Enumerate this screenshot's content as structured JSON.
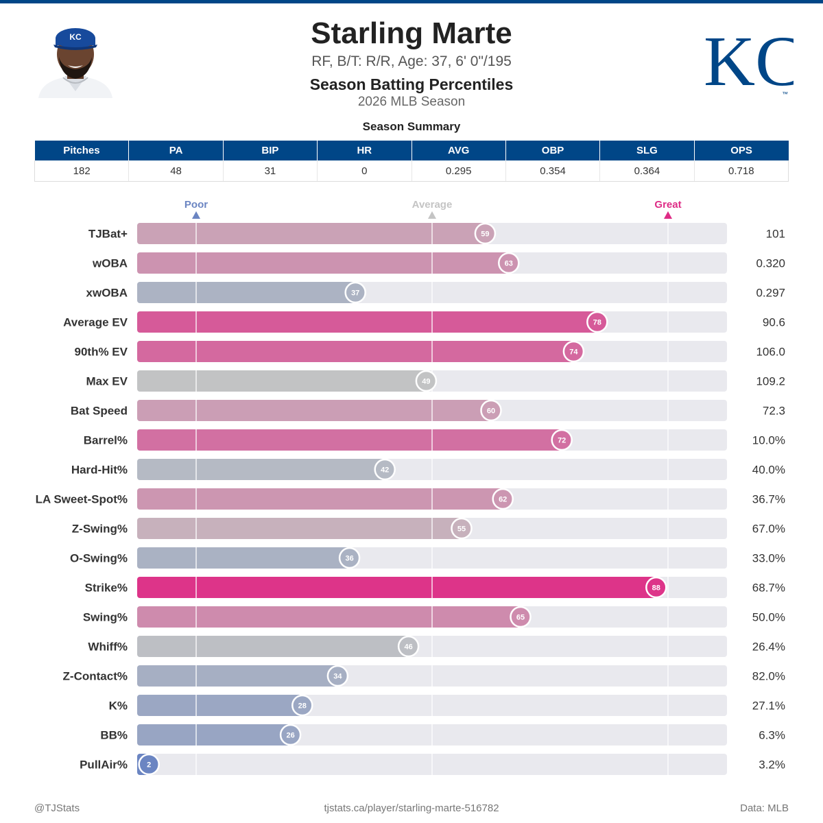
{
  "header": {
    "player_name": "Starling Marte",
    "bio": "RF, B/T: R/R, Age: 37, 6' 0\"/195",
    "title": "Season Batting Percentiles",
    "season": "2026 MLB Season",
    "logo_text": "KC",
    "logo_mark": "™"
  },
  "colors": {
    "brand": "#004687",
    "great": "#de2c86",
    "average": "#c4c4c4",
    "poor": "#6b85c2",
    "track": "#e9e9ee"
  },
  "summary": {
    "title": "Season Summary",
    "columns": [
      "Pitches",
      "PA",
      "BIP",
      "HR",
      "AVG",
      "OBP",
      "SLG",
      "OPS"
    ],
    "values": [
      "182",
      "48",
      "31",
      "0",
      "0.295",
      "0.354",
      "0.364",
      "0.718"
    ]
  },
  "chart_data": {
    "type": "bar",
    "orientation": "horizontal",
    "xlim": [
      0,
      100
    ],
    "markers": [
      {
        "label": "Poor",
        "value": 10
      },
      {
        "label": "Average",
        "value": 50
      },
      {
        "label": "Great",
        "value": 90
      }
    ],
    "categories": [
      "TJBat+",
      "wOBA",
      "xwOBA",
      "Average EV",
      "90th% EV",
      "Max EV",
      "Bat Speed",
      "Barrel%",
      "Hard-Hit%",
      "LA Sweet-Spot%",
      "Z-Swing%",
      "O-Swing%",
      "Strike%",
      "Swing%",
      "Whiff%",
      "Z-Contact%",
      "K%",
      "BB%",
      "PullAir%"
    ],
    "percentiles": [
      59,
      63,
      37,
      78,
      74,
      49,
      60,
      72,
      42,
      62,
      55,
      36,
      88,
      65,
      46,
      34,
      28,
      26,
      2
    ],
    "stat_values": [
      "101",
      "0.320",
      "0.297",
      "90.6",
      "106.0",
      "109.2",
      "72.3",
      "10.0%",
      "40.0%",
      "36.7%",
      "67.0%",
      "33.0%",
      "68.7%",
      "50.0%",
      "26.4%",
      "82.0%",
      "27.1%",
      "6.3%",
      "3.2%"
    ]
  },
  "footer": {
    "handle": "@TJStats",
    "url": "tjstats.ca/player/starling-marte-516782",
    "source": "Data: MLB"
  }
}
